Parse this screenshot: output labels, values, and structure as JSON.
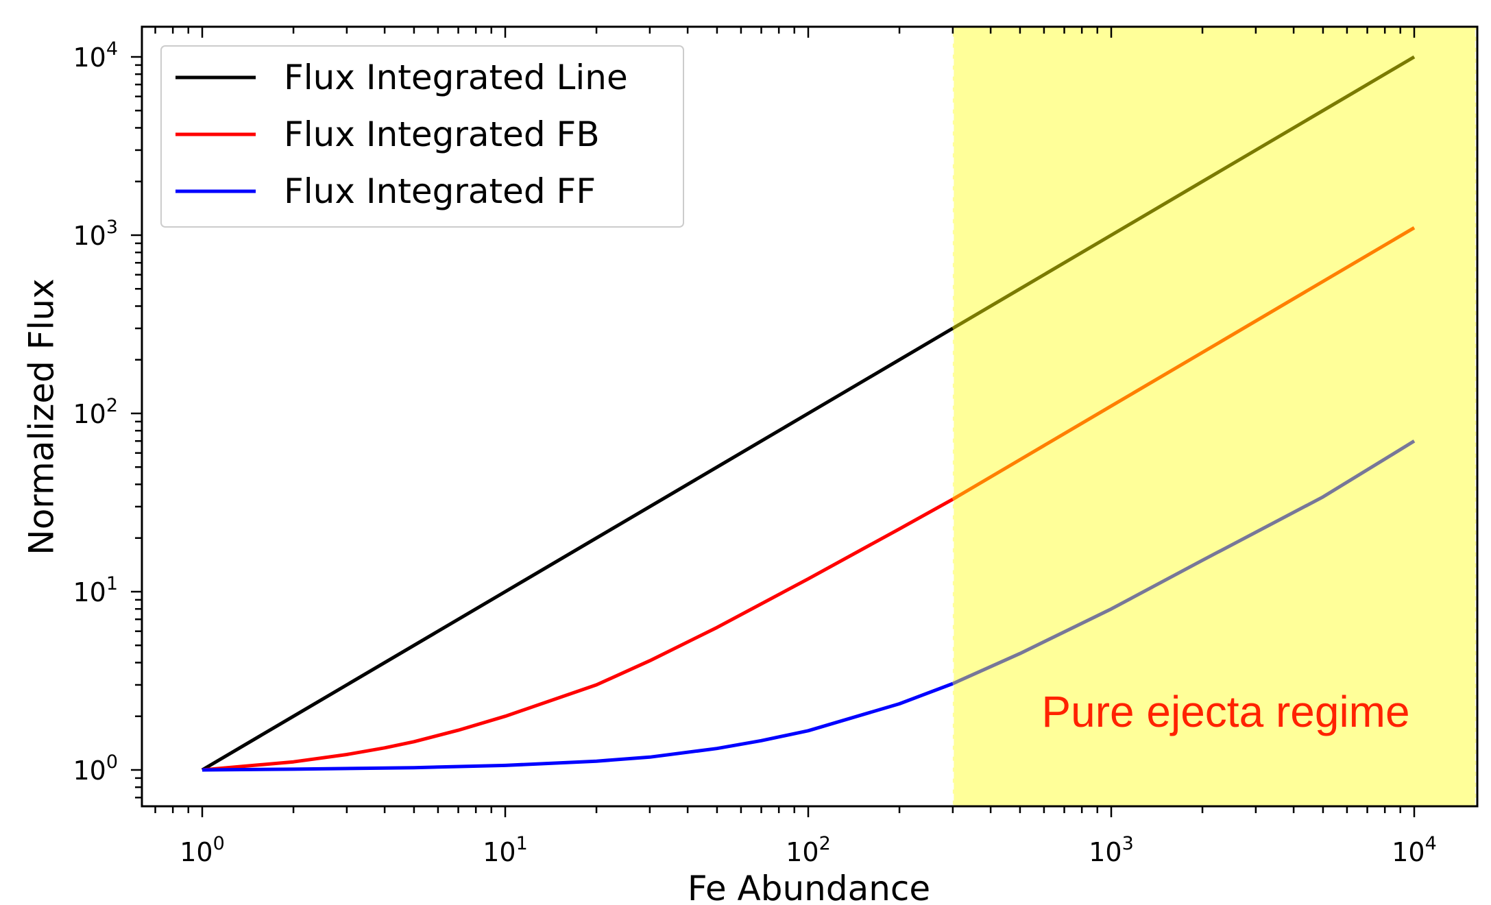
{
  "chart_data": {
    "type": "line",
    "xlabel": "Fe Abundance",
    "ylabel": "Normalized Flux",
    "xscale": "log",
    "yscale": "log",
    "xlim": [
      0.65,
      16000
    ],
    "ylim": [
      0.63,
      16000
    ],
    "x_ticks": [
      {
        "base": "10",
        "exp": "0",
        "value": 1
      },
      {
        "base": "10",
        "exp": "1",
        "value": 10
      },
      {
        "base": "10",
        "exp": "2",
        "value": 100
      },
      {
        "base": "10",
        "exp": "3",
        "value": 1000
      },
      {
        "base": "10",
        "exp": "4",
        "value": 10000
      }
    ],
    "y_ticks": [
      {
        "base": "10",
        "exp": "0",
        "value": 1
      },
      {
        "base": "10",
        "exp": "1",
        "value": 10
      },
      {
        "base": "10",
        "exp": "2",
        "value": 100
      },
      {
        "base": "10",
        "exp": "3",
        "value": 1000
      },
      {
        "base": "10",
        "exp": "4",
        "value": 10000
      }
    ],
    "grid": false,
    "legend_position": "top-left",
    "series": [
      {
        "name": "Flux Integrated Line",
        "color": "#000000",
        "shaded_color": "#7a7a00",
        "x": [
          1,
          2,
          5,
          10,
          20,
          50,
          100,
          200,
          300,
          500,
          1000,
          2000,
          5000,
          10000
        ],
        "y": [
          1,
          2,
          5,
          10,
          20,
          50,
          100,
          200,
          300,
          500,
          1000,
          2000,
          5000,
          10000
        ]
      },
      {
        "name": "Flux Integrated FB",
        "color": "#ff0000",
        "shaded_color": "#ff7f00",
        "x": [
          1,
          2,
          3,
          4,
          5,
          7,
          10,
          20,
          30,
          50,
          100,
          200,
          300,
          500,
          1000,
          2000,
          5000,
          10000
        ],
        "y": [
          1,
          1.11,
          1.22,
          1.33,
          1.44,
          1.67,
          2.0,
          3.0,
          4.1,
          6.3,
          11.8,
          22.5,
          33,
          55,
          110,
          220,
          550,
          1100
        ]
      },
      {
        "name": "Flux Integrated FF",
        "color": "#0000ff",
        "shaded_color": "#777799",
        "x": [
          1,
          2,
          5,
          10,
          20,
          30,
          50,
          70,
          100,
          200,
          300,
          500,
          1000,
          2000,
          5000,
          10000
        ],
        "y": [
          1,
          1.01,
          1.03,
          1.06,
          1.12,
          1.18,
          1.32,
          1.46,
          1.66,
          2.35,
          3.05,
          4.5,
          8,
          15,
          34,
          70
        ]
      }
    ],
    "shaded_region": {
      "x_range": [
        300,
        16000
      ],
      "color": "#ffff99",
      "label": "Pure ejecta regime",
      "label_color": "#ff2200"
    }
  }
}
